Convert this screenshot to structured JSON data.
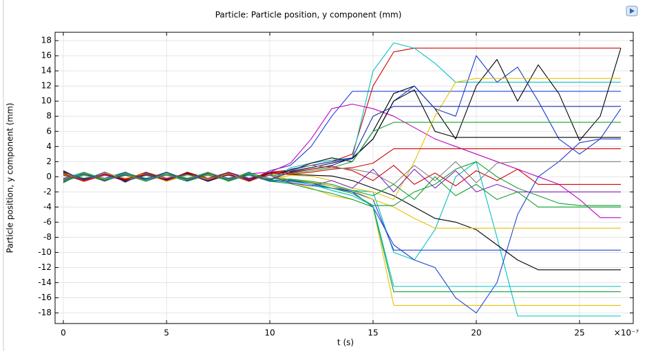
{
  "chart_data": {
    "type": "line",
    "title": "Particle: Particle position, y component (mm)",
    "xlabel": "t (s)",
    "ylabel": "Particle position, y component (mm)",
    "x_scale_label": "×10⁻⁷",
    "x": [
      0,
      1,
      2,
      3,
      4,
      5,
      6,
      7,
      8,
      9,
      10,
      11,
      12,
      13,
      14,
      15,
      16,
      17,
      18,
      19,
      20,
      21,
      22,
      23,
      24,
      25,
      26,
      27
    ],
    "xlim": [
      -0.4,
      27.6
    ],
    "ylim": [
      -19.4,
      19.1
    ],
    "xticks": [
      0,
      5,
      10,
      15,
      20,
      25
    ],
    "yticks": [
      -18,
      -16,
      -14,
      -12,
      -10,
      -8,
      -6,
      -4,
      -2,
      0,
      2,
      4,
      6,
      8,
      10,
      12,
      14,
      16,
      18
    ],
    "grid": true,
    "series": [
      {
        "color": "#d00000",
        "values": [
          0.6,
          -0.4,
          0.5,
          -0.3,
          0.4,
          -0.2,
          0.3,
          -0.4,
          0.5,
          -0.3,
          0.6,
          0.9,
          1.5,
          2,
          3,
          12,
          16.5,
          17,
          17,
          17,
          17,
          17,
          17,
          17,
          17,
          17,
          17,
          17
        ]
      },
      {
        "color": "#00c0c0",
        "values": [
          -0.5,
          0.6,
          -0.4,
          0.3,
          -0.5,
          0.4,
          -0.3,
          0.5,
          -0.2,
          0.4,
          -0.6,
          1.2,
          1.8,
          2.2,
          2.5,
          14,
          17.7,
          17,
          15,
          12.5,
          12.5,
          12.5,
          12.5,
          12.5,
          12.5,
          12.5,
          12.5,
          12.5
        ]
      },
      {
        "color": "#2040d0",
        "values": [
          0.3,
          -0.6,
          0.4,
          -0.5,
          0.3,
          -0.4,
          0.5,
          -0.3,
          0.2,
          -0.5,
          0.8,
          1.5,
          4,
          8,
          11.3,
          11.3,
          11.3,
          11.3,
          11.3,
          11.3,
          11.3,
          11.3,
          11.3,
          11.3,
          11.3,
          11.3,
          11.3,
          11.3
        ]
      },
      {
        "color": "#c000c0",
        "values": [
          -0.7,
          0.5,
          -0.6,
          0.4,
          -0.3,
          0.5,
          -0.4,
          0.3,
          -0.5,
          0.4,
          0.6,
          1.8,
          5,
          9,
          9.6,
          9,
          8,
          6.5,
          5,
          4,
          3,
          2,
          1,
          0,
          -1,
          -3,
          -5.4,
          -5.4
        ]
      },
      {
        "color": "#000000",
        "values": [
          0.8,
          -0.5,
          0.6,
          -0.7,
          0.5,
          -0.3,
          0.4,
          -0.6,
          0.3,
          -0.5,
          0.4,
          0.8,
          1.8,
          2.5,
          2,
          6,
          11,
          12,
          9,
          5,
          12,
          15.5,
          10,
          14.8,
          11,
          4.8,
          8,
          17
        ]
      },
      {
        "color": "#1a3cc8",
        "values": [
          -0.3,
          0.5,
          -0.5,
          0.6,
          -0.4,
          0.3,
          -0.5,
          0.4,
          -0.3,
          0.6,
          -0.5,
          1,
          1.5,
          2,
          2.5,
          5,
          10,
          12,
          9,
          8,
          16,
          12.5,
          14.5,
          10,
          5,
          3,
          5,
          9
        ]
      },
      {
        "color": "#000000",
        "values": [
          0.4,
          -0.3,
          0.5,
          -0.6,
          0.3,
          -0.5,
          0.6,
          -0.3,
          0.4,
          -0.2,
          0.5,
          0.7,
          1.2,
          1.8,
          2.4,
          5,
          10,
          11.5,
          6,
          5.2,
          5.2,
          5.2,
          5.2,
          5.2,
          5.2,
          5.2,
          5.2,
          5.2
        ]
      },
      {
        "color": "#00c0c0",
        "values": [
          -0.6,
          0.4,
          -0.5,
          0.3,
          -0.6,
          0.5,
          -0.2,
          0.4,
          -0.5,
          0.3,
          -0.4,
          -0.8,
          -1.2,
          -1.5,
          -1.8,
          -2,
          -10,
          -11,
          -7,
          0,
          2,
          -8,
          -18.4,
          -18.4,
          -18.4,
          -18.4,
          -18.4,
          -18.4
        ]
      },
      {
        "color": "#e8c000",
        "values": [
          0.5,
          -0.6,
          0.3,
          -0.4,
          0.6,
          -0.3,
          0.5,
          -0.5,
          0.4,
          -0.6,
          0.3,
          -0.7,
          -1.5,
          -2.5,
          -3,
          -4,
          -17,
          -17,
          -17,
          -17,
          -17,
          -17,
          -17,
          -17,
          -17,
          -17,
          -17,
          -17
        ]
      },
      {
        "color": "#10a030",
        "values": [
          -0.4,
          0.3,
          -0.6,
          0.5,
          -0.3,
          0.6,
          -0.4,
          0.2,
          -0.5,
          0.4,
          -0.6,
          -0.9,
          -1.6,
          -2.2,
          -3,
          -4,
          -15.2,
          -15.2,
          -15.2,
          -15.2,
          -15.2,
          -15.2,
          -15.2,
          -15.2,
          -15.2,
          -15.2,
          -15.2,
          -15.2
        ]
      },
      {
        "color": "#2040d0",
        "values": [
          0.2,
          -0.4,
          0.6,
          -0.3,
          0.5,
          -0.6,
          0.3,
          -0.4,
          0.6,
          -0.2,
          0.4,
          -0.5,
          -1,
          -1.5,
          -2,
          -4,
          -9,
          -11,
          -12,
          -16,
          -18,
          -14,
          -5,
          0,
          2,
          4.5,
          5,
          5
        ]
      },
      {
        "color": "#00c0c0",
        "values": [
          -0.2,
          0.6,
          -0.3,
          0.5,
          -0.4,
          0.2,
          -0.6,
          0.5,
          -0.3,
          0.4,
          -0.5,
          -0.6,
          -1,
          -1.8,
          -2.5,
          -3.8,
          -14.5,
          -14.5,
          -14.5,
          -14.5,
          -14.5,
          -14.5,
          -14.5,
          -14.5,
          -14.5,
          -14.5,
          -14.5,
          -14.5
        ]
      },
      {
        "color": "#000000",
        "values": [
          0.6,
          -0.3,
          0.4,
          -0.5,
          0.2,
          -0.4,
          0.5,
          -0.6,
          0.3,
          -0.4,
          0.5,
          0.3,
          0.2,
          0.1,
          -0.5,
          -1.5,
          -2.5,
          -4,
          -5.5,
          -6,
          -7,
          -9,
          -11,
          -12.3,
          -12.3,
          -12.3,
          -12.3,
          -12.3
        ]
      },
      {
        "color": "#2040d0",
        "values": [
          -0.5,
          0.3,
          -0.2,
          0.6,
          -0.5,
          0.4,
          -0.3,
          0.6,
          -0.4,
          0.2,
          -0.6,
          -0.5,
          -0.8,
          -1.2,
          -2,
          -3,
          -9.7,
          -9.7,
          -9.7,
          -9.7,
          -9.7,
          -9.7,
          -9.7,
          -9.7,
          -9.7,
          -9.7,
          -9.7,
          -9.7
        ]
      },
      {
        "color": "#e8c000",
        "values": [
          0.3,
          -0.5,
          0.5,
          -0.2,
          0.4,
          -0.6,
          0.2,
          -0.3,
          0.5,
          -0.6,
          0.3,
          -0.4,
          -0.7,
          -1.2,
          -1.8,
          -3,
          -4,
          -5.5,
          -6.8,
          -6.8,
          -6.8,
          -6.8,
          -6.8,
          -6.8,
          -6.8,
          -6.8,
          -6.8,
          -6.8
        ]
      },
      {
        "color": "#e8c000",
        "values": [
          -0.4,
          0.5,
          -0.3,
          0.2,
          -0.6,
          0.4,
          -0.5,
          0.3,
          -0.2,
          0.5,
          -0.3,
          0.2,
          0.1,
          -0.5,
          -1.5,
          -2,
          -3,
          2,
          8,
          12.5,
          13,
          13,
          13,
          13,
          13,
          13,
          13,
          13
        ]
      },
      {
        "color": "#10a030",
        "values": [
          0.5,
          -0.2,
          0.3,
          -0.6,
          0.4,
          -0.5,
          0.3,
          -0.2,
          0.6,
          -0.4,
          0.2,
          0.4,
          0.8,
          1.2,
          2,
          6,
          7.2,
          7.2,
          7.2,
          7.2,
          7.2,
          7.2,
          7.2,
          7.2,
          7.2,
          7.2,
          7.2,
          7.2
        ]
      },
      {
        "color": "#1a2aa0",
        "values": [
          -0.3,
          0.4,
          -0.5,
          0.2,
          -0.3,
          0.6,
          -0.5,
          0.4,
          -0.2,
          0.3,
          -0.4,
          0.6,
          1,
          1.5,
          2.5,
          8,
          9.3,
          9.3,
          9.3,
          9.3,
          9.3,
          9.3,
          9.3,
          9.3,
          9.3,
          9.3,
          9.3,
          9.3
        ]
      },
      {
        "color": "#d00000",
        "values": [
          0.2,
          -0.5,
          0.4,
          -0.4,
          0.6,
          -0.2,
          0.4,
          -0.5,
          0.3,
          -0.6,
          0.5,
          0.3,
          0.6,
          1,
          1.2,
          1.8,
          3.7,
          3.7,
          3.7,
          3.7,
          3.7,
          3.7,
          3.7,
          3.7,
          3.7,
          3.7,
          3.7,
          3.7
        ]
      },
      {
        "color": "#10a030",
        "values": [
          -0.6,
          0.2,
          -0.4,
          0.5,
          -0.2,
          0.3,
          -0.6,
          0.2,
          -0.4,
          0.5,
          -0.2,
          -0.4,
          -0.8,
          -1.5,
          -2.2,
          -3.8,
          -3.8,
          -2,
          -1,
          1,
          2,
          0,
          -1.5,
          -2.5,
          -3.5,
          -3.8,
          -3.8,
          -3.8
        ]
      },
      {
        "color": "#d00000",
        "values": [
          0.4,
          -0.6,
          0.2,
          -0.3,
          0.3,
          -0.5,
          0.6,
          -0.2,
          0.5,
          -0.3,
          0.6,
          0.5,
          1,
          1.4,
          0.8,
          -0.5,
          1.5,
          -1,
          0.5,
          -1.2,
          0.8,
          -0.5,
          1,
          -1,
          -1,
          -1,
          -1,
          -1
        ]
      },
      {
        "color": "#808080",
        "values": [
          -0.2,
          0.3,
          -0.6,
          0.4,
          -0.5,
          0.2,
          -0.4,
          0.6,
          -0.3,
          0.2,
          -0.3,
          0.8,
          1.5,
          1.2,
          1,
          0.5,
          -1,
          1.5,
          -0.5,
          2,
          -0.8,
          1.8,
          2,
          2,
          2,
          2,
          2,
          2
        ]
      },
      {
        "color": "#8020c0",
        "values": [
          0.7,
          -0.4,
          0.3,
          -0.6,
          0.2,
          -0.3,
          0.4,
          -0.5,
          0.6,
          -0.4,
          0.2,
          -0.8,
          -1.2,
          -0.5,
          -1.5,
          1,
          -2,
          1,
          -1.5,
          0.8,
          -2,
          -1,
          -2,
          -2,
          -2,
          -2,
          -2,
          -2
        ]
      },
      {
        "color": "#10a030",
        "values": [
          -0.8,
          0.6,
          -0.4,
          0.3,
          -0.6,
          0.3,
          -0.2,
          0.5,
          -0.6,
          0.3,
          -0.5,
          -0.3,
          -0.6,
          -1,
          -1.8,
          -2.5,
          -1,
          -3,
          0,
          -2.5,
          -1,
          -3,
          -2,
          -4,
          -4,
          -4,
          -4,
          -4
        ]
      }
    ]
  }
}
